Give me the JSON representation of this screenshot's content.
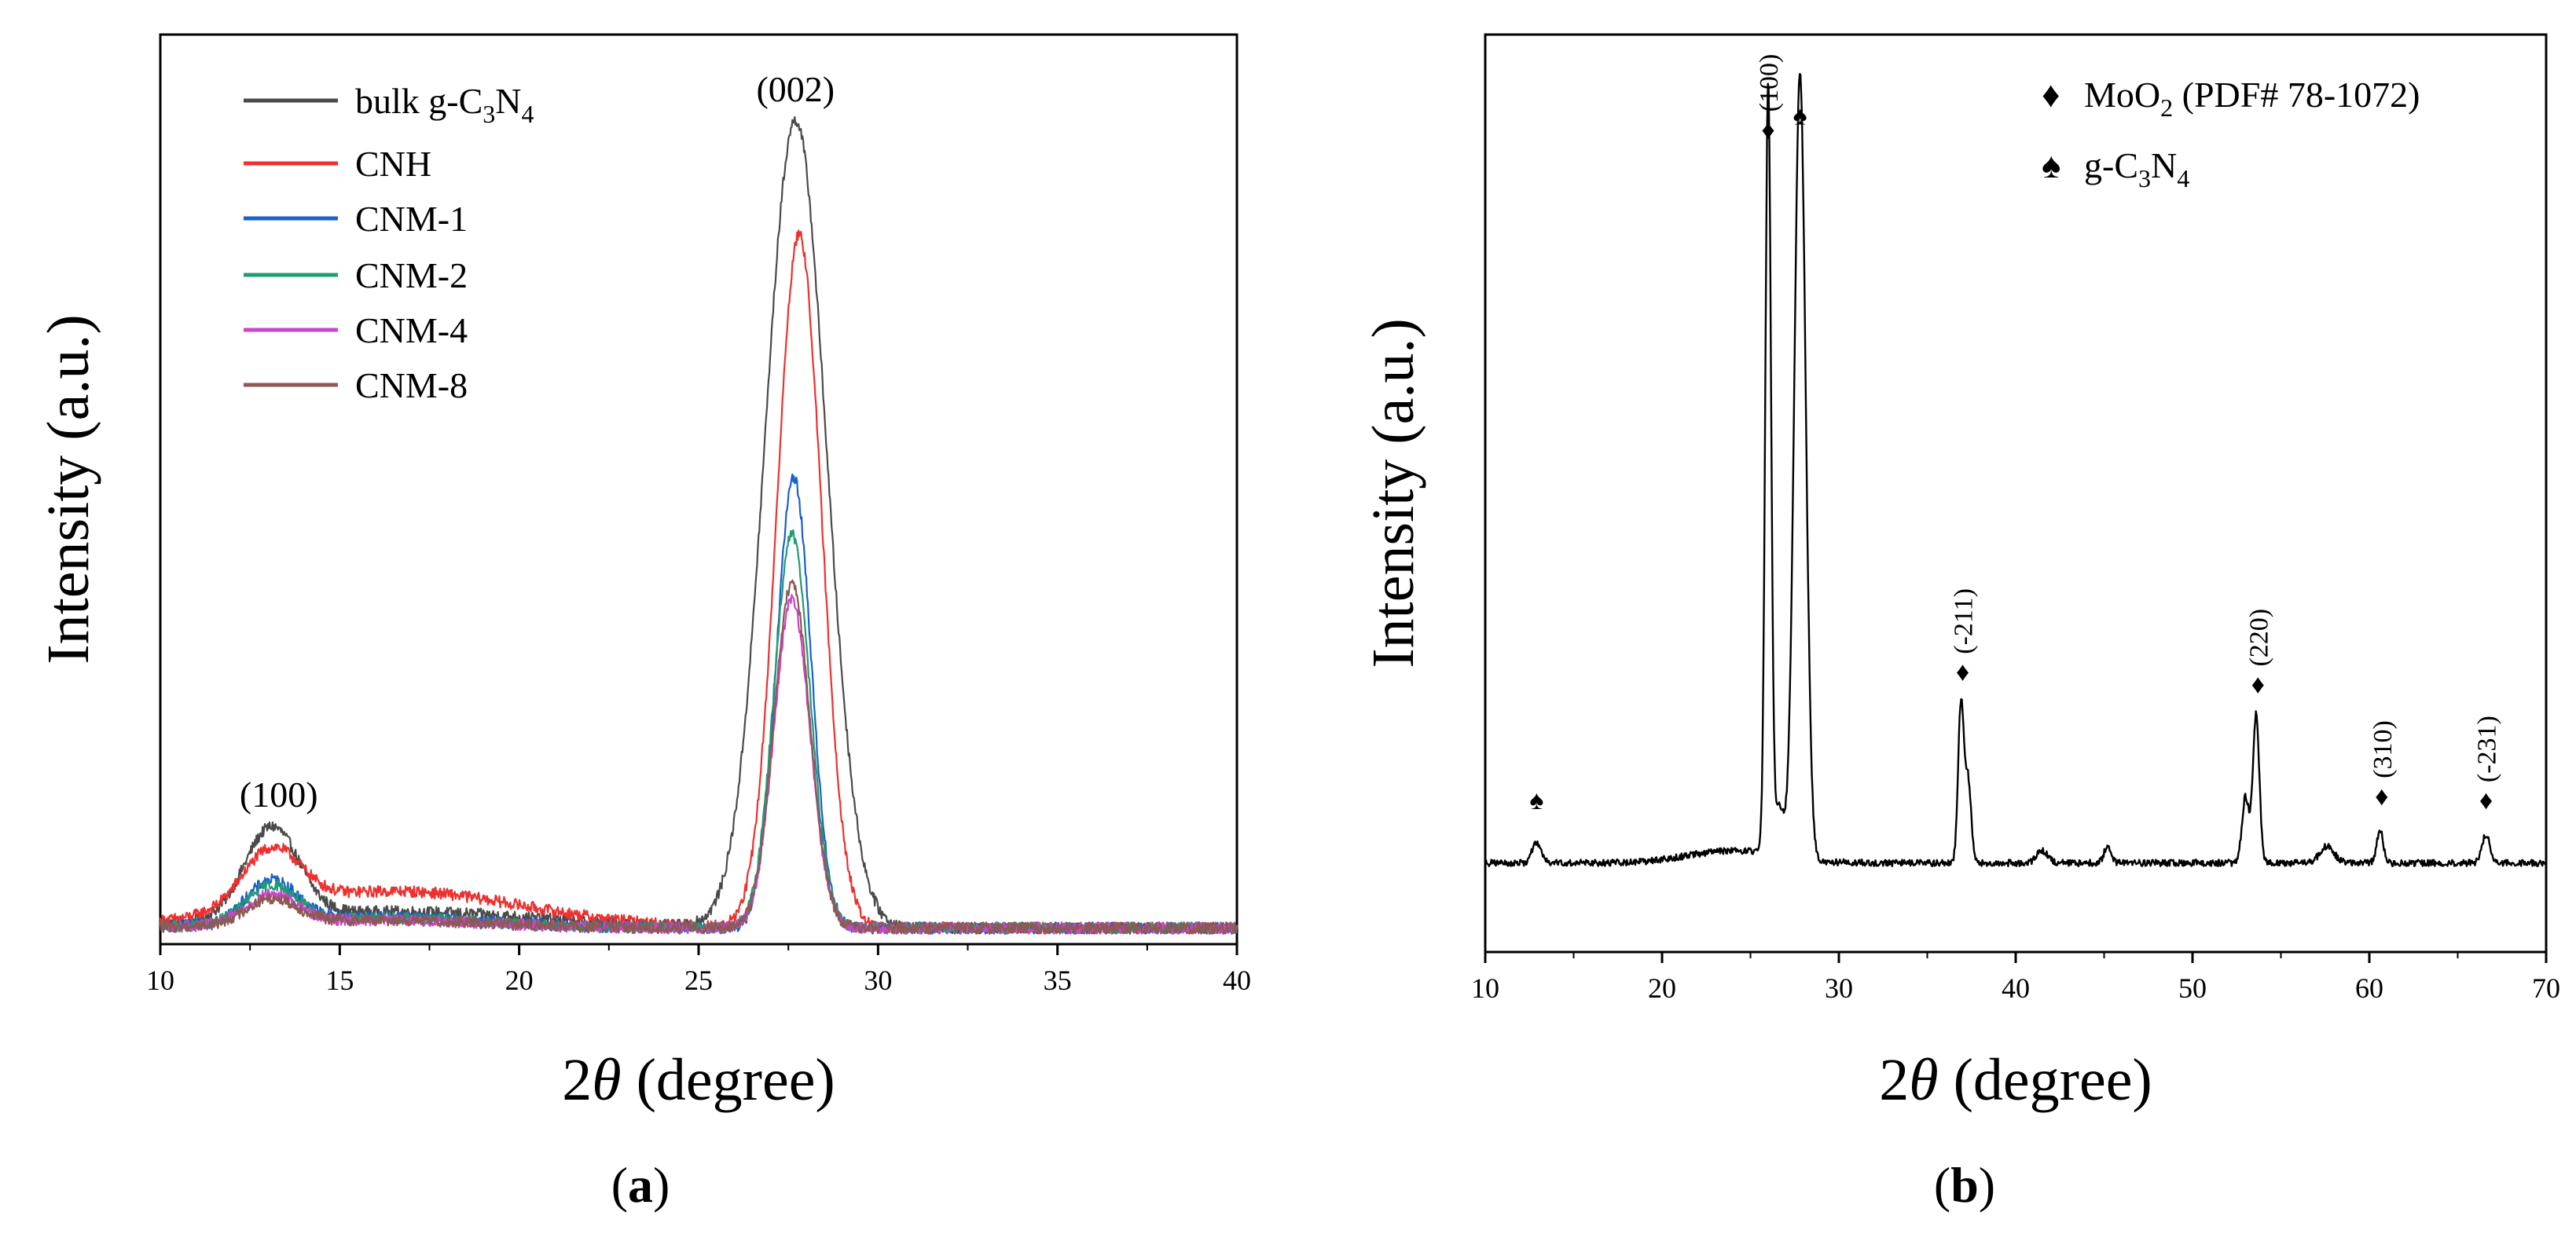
{
  "chart_data": [
    {
      "panel": "(a)",
      "panel_text": {
        "open": "(",
        "letter": "a",
        "close": ")"
      },
      "type": "line",
      "xlabel": "2θ (degree)",
      "xlabel_parts": {
        "pre": "2",
        "theta": "θ",
        "post": " (degree)"
      },
      "ylabel": "Intensity (a.u.)",
      "xlim": [
        10,
        40
      ],
      "ylim": [
        0,
        1
      ],
      "xticks": [
        10,
        15,
        20,
        25,
        30,
        35,
        40
      ],
      "grid": false,
      "legend_position": "top-left",
      "annotations": [
        {
          "text": "(100)",
          "x": 13.3,
          "y": 0.16
        },
        {
          "text": "(002)",
          "x": 27.7,
          "y": 1.02
        }
      ],
      "series": [
        {
          "name": "bulk g-C3N4",
          "label_parts": [
            "bulk g-C",
            "3",
            "N",
            "4"
          ],
          "color": "#4a4a4a",
          "peaks": [
            {
              "center": 13.1,
              "height": 0.11,
              "width": 0.75
            },
            {
              "center": 27.7,
              "height": 0.985,
              "width": 0.85
            }
          ],
          "broad": {
            "center": 16.5,
            "height": 0.02,
            "width": 4.0
          },
          "base": 0.012
        },
        {
          "name": "CNH",
          "label_parts": [
            "CNH"
          ],
          "color": "#ee3030",
          "peaks": [
            {
              "center": 13.1,
              "height": 0.07,
              "width": 0.8
            },
            {
              "center": 27.8,
              "height": 0.845,
              "width": 0.62
            }
          ],
          "broad": {
            "center": 16.5,
            "height": 0.045,
            "width": 3.6
          },
          "base": 0.012
        },
        {
          "name": "CNM-1",
          "label_parts": [
            "CNM-1"
          ],
          "color": "#1a5fd0",
          "peaks": [
            {
              "center": 13.1,
              "height": 0.05,
              "width": 0.7
            },
            {
              "center": 27.65,
              "height": 0.55,
              "width": 0.48
            }
          ],
          "broad": {
            "center": 16.0,
            "height": 0.014,
            "width": 3.0
          },
          "base": 0.012
        },
        {
          "name": "CNM-2",
          "label_parts": [
            "CNM-2"
          ],
          "color": "#1f9c72",
          "peaks": [
            {
              "center": 13.1,
              "height": 0.045,
              "width": 0.7
            },
            {
              "center": 27.6,
              "height": 0.48,
              "width": 0.5
            }
          ],
          "broad": {
            "center": 16.0,
            "height": 0.012,
            "width": 3.0
          },
          "base": 0.012
        },
        {
          "name": "CNM-4",
          "label_parts": [
            "CNM-4"
          ],
          "color": "#cc44cc",
          "peaks": [
            {
              "center": 13.1,
              "height": 0.035,
              "width": 0.7
            },
            {
              "center": 27.6,
              "height": 0.4,
              "width": 0.5
            }
          ],
          "broad": {
            "center": 16.0,
            "height": 0.01,
            "width": 3.0
          },
          "base": 0.012
        },
        {
          "name": "CNM-8",
          "label_parts": [
            "CNM-8"
          ],
          "color": "#8c5a52",
          "peaks": [
            {
              "center": 13.1,
              "height": 0.03,
              "width": 0.7
            },
            {
              "center": 27.6,
              "height": 0.42,
              "width": 0.5
            }
          ],
          "broad": {
            "center": 16.0,
            "height": 0.01,
            "width": 3.0
          },
          "base": 0.012
        }
      ]
    },
    {
      "panel": "(b)",
      "panel_text": {
        "open": "(",
        "letter": "b",
        "close": ")"
      },
      "type": "line",
      "xlabel": "2θ (degree)",
      "xlabel_parts": {
        "pre": "2",
        "theta": "θ",
        "post": " (degree)"
      },
      "ylabel": "Intensity (a.u.)",
      "xlim": [
        10,
        70
      ],
      "ylim": [
        0,
        1
      ],
      "xticks": [
        10,
        20,
        30,
        40,
        50,
        60,
        70
      ],
      "grid": false,
      "legend_position": "top-right",
      "legend": [
        {
          "marker": "♦",
          "label": "MoO2 (PDF# 78-1072)",
          "label_parts": [
            "MoO",
            "2",
            " (PDF# 78-1072)"
          ]
        },
        {
          "marker": "♠",
          "label": "g-C3N4",
          "label_parts": [
            "g-C",
            "3",
            "N",
            "4"
          ]
        }
      ],
      "series": [
        {
          "name": "sample",
          "color": "#000000",
          "base": 0.1,
          "peaks": [
            {
              "center": 12.9,
              "height": 0.025,
              "width": 0.25
            },
            {
              "center": 26.0,
              "height": 0.93,
              "width": 0.16
            },
            {
              "center": 26.6,
              "height": 0.06,
              "width": 0.3
            },
            {
              "center": 27.8,
              "height": 0.95,
              "width": 0.32
            },
            {
              "center": 36.9,
              "height": 0.19,
              "width": 0.16
            },
            {
              "center": 37.3,
              "height": 0.1,
              "width": 0.18
            },
            {
              "center": 41.5,
              "height": 0.015,
              "width": 0.3
            },
            {
              "center": 45.2,
              "height": 0.02,
              "width": 0.2
            },
            {
              "center": 53.0,
              "height": 0.08,
              "width": 0.2
            },
            {
              "center": 53.6,
              "height": 0.18,
              "width": 0.18
            },
            {
              "center": 57.6,
              "height": 0.02,
              "width": 0.4
            },
            {
              "center": 60.6,
              "height": 0.04,
              "width": 0.18
            },
            {
              "center": 66.6,
              "height": 0.035,
              "width": 0.22
            }
          ],
          "broad": {
            "center": 24.0,
            "height": 0.015,
            "width": 2.5
          }
        }
      ],
      "annotations": [
        {
          "marker": "♦",
          "label": "(100)",
          "x": 26.0,
          "y": 0.975
        },
        {
          "marker": "♠",
          "x": 27.8,
          "y": 0.992
        },
        {
          "marker": "♦",
          "label": "(-211)",
          "x": 37.0,
          "y": 0.32
        },
        {
          "marker": "♦",
          "label": "(220)",
          "x": 53.7,
          "y": 0.305
        },
        {
          "marker": "♦",
          "label": "(310)",
          "x": 60.7,
          "y": 0.17
        },
        {
          "marker": "♦",
          "label": "(-231)",
          "x": 66.6,
          "y": 0.165
        },
        {
          "marker": "♠",
          "x": 12.9,
          "y": 0.165
        }
      ]
    }
  ]
}
